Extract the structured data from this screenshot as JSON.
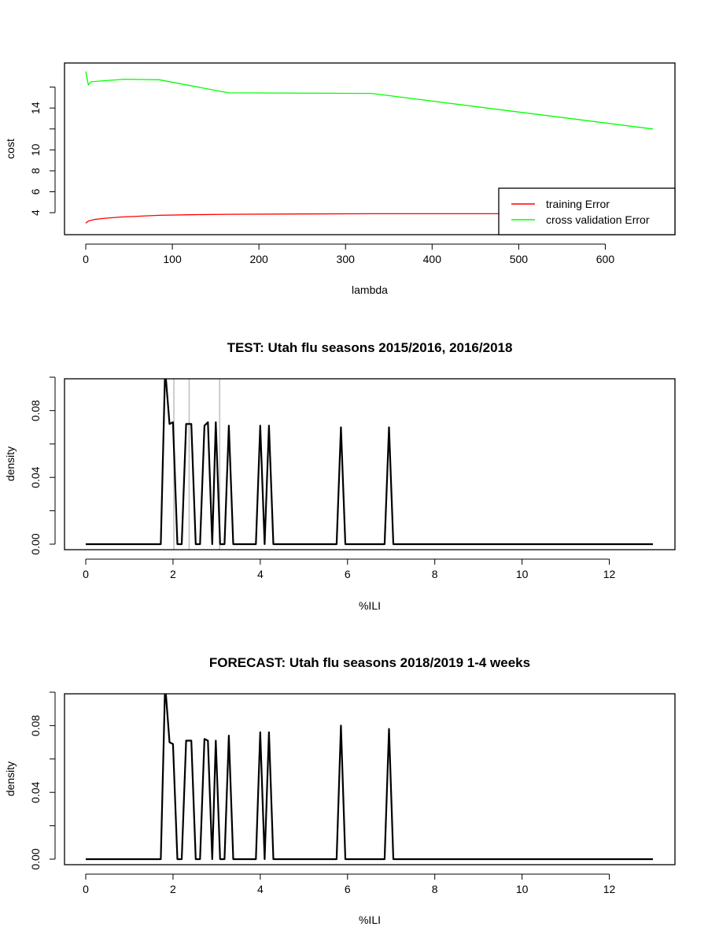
{
  "chart_data": [
    {
      "type": "line",
      "title": "",
      "xlabel": "lambda",
      "ylabel": "cost",
      "xlim": [
        0,
        655
      ],
      "ylim": [
        2.5,
        17.7
      ],
      "x_ticks": [
        "0",
        "100",
        "200",
        "300",
        "400",
        "500",
        "600"
      ],
      "y_ticks": [
        "4",
        "6",
        "8",
        "10",
        "14"
      ],
      "legend_position": "bottom-right",
      "series": [
        {
          "name": "training Error",
          "color": "#ff0000",
          "x": [
            0,
            3,
            10,
            20,
            40,
            60,
            85,
            120,
            165,
            250,
            330,
            450,
            560,
            655
          ],
          "y": [
            3.0,
            3.2,
            3.35,
            3.45,
            3.58,
            3.66,
            3.75,
            3.8,
            3.85,
            3.88,
            3.9,
            3.9,
            3.9,
            3.9
          ]
        },
        {
          "name": "cross validation Error",
          "color": "#00ff00",
          "x": [
            0,
            3,
            6,
            20,
            45,
            85,
            165,
            330,
            655
          ],
          "y": [
            17.5,
            16.2,
            16.5,
            16.6,
            16.75,
            16.7,
            15.45,
            15.4,
            12.0
          ]
        }
      ]
    },
    {
      "type": "line",
      "title": "TEST: Utah  flu seasons 2015/2016, 2016/2018",
      "xlabel": "%ILI",
      "ylabel": "density",
      "xlim": [
        0,
        13
      ],
      "ylim": [
        0,
        0.1
      ],
      "x_ticks": [
        "0",
        "2",
        "4",
        "6",
        "8",
        "10",
        "12"
      ],
      "y_ticks": [
        "0.00",
        "0.04",
        "0.08"
      ],
      "vlines": [
        2.02,
        2.37,
        3.07
      ],
      "vline_color": "#bebebe",
      "series": [
        {
          "name": "",
          "color": "#000000",
          "x": [
            0,
            1.72,
            1.82,
            1.92,
            2.0,
            2.1,
            2.2,
            2.3,
            2.42,
            2.52,
            2.62,
            2.72,
            2.8,
            2.9,
            2.98,
            3.08,
            3.18,
            3.28,
            3.38,
            3.9,
            4.0,
            4.1,
            4.2,
            4.3,
            5.75,
            5.85,
            5.95,
            6.85,
            6.95,
            7.05,
            13
          ],
          "y": [
            0,
            0,
            0.105,
            0.072,
            0.073,
            0,
            0,
            0.072,
            0.072,
            0,
            0,
            0.071,
            0.073,
            0,
            0.073,
            0,
            0,
            0.071,
            0,
            0,
            0.071,
            0,
            0.071,
            0,
            0,
            0.07,
            0,
            0,
            0.07,
            0,
            0
          ]
        }
      ]
    },
    {
      "type": "line",
      "title": "FORECAST: Utah flu seasons 2018/2019 1-4 weeks",
      "xlabel": "%ILI",
      "ylabel": "density",
      "xlim": [
        0,
        13
      ],
      "ylim": [
        0,
        0.1
      ],
      "x_ticks": [
        "0",
        "2",
        "4",
        "6",
        "8",
        "10",
        "12"
      ],
      "y_ticks": [
        "0.00",
        "0.04",
        "0.08"
      ],
      "series": [
        {
          "name": "",
          "color": "#000000",
          "x": [
            0,
            1.72,
            1.82,
            1.92,
            2.0,
            2.1,
            2.2,
            2.3,
            2.42,
            2.52,
            2.62,
            2.72,
            2.8,
            2.9,
            2.98,
            3.08,
            3.18,
            3.28,
            3.38,
            3.9,
            4.0,
            4.1,
            4.2,
            4.3,
            5.75,
            5.85,
            5.95,
            6.85,
            6.95,
            7.05,
            13
          ],
          "y": [
            0,
            0,
            0.105,
            0.07,
            0.069,
            0,
            0,
            0.071,
            0.071,
            0,
            0,
            0.072,
            0.071,
            0,
            0.071,
            0,
            0,
            0.074,
            0,
            0,
            0.076,
            0,
            0.076,
            0,
            0,
            0.08,
            0,
            0,
            0.078,
            0,
            0
          ]
        }
      ]
    }
  ]
}
